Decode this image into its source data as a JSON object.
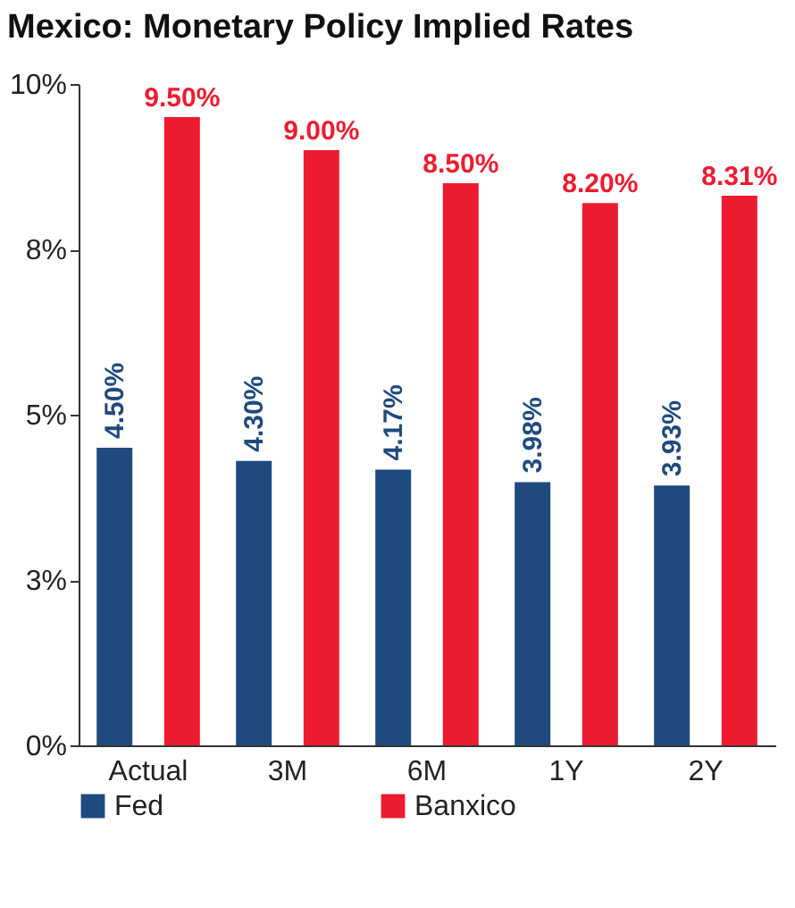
{
  "chart_data": {
    "type": "bar",
    "title": "Mexico: Monetary Policy Implied Rates",
    "categories": [
      "Actual",
      "3M",
      "6M",
      "1Y",
      "2Y"
    ],
    "series": [
      {
        "name": "Fed",
        "color": "#1f4a7e",
        "values": [
          4.5,
          4.3,
          4.17,
          3.98,
          3.93
        ],
        "value_labels": [
          "4.50%",
          "4.30%",
          "4.17%",
          "3.98%",
          "3.93%"
        ]
      },
      {
        "name": "Banxico",
        "color": "#ed1b2f",
        "values": [
          9.5,
          9.0,
          8.5,
          8.2,
          8.31
        ],
        "value_labels": [
          "9.50%",
          "9.00%",
          "8.50%",
          "8.20%",
          "8.31%"
        ]
      }
    ],
    "ylim": [
      0,
      10
    ],
    "yticks": [
      {
        "value": 0,
        "label": "0%"
      },
      {
        "value": 2.5,
        "label": "3%"
      },
      {
        "value": 5,
        "label": "5%"
      },
      {
        "value": 7.5,
        "label": "8%"
      },
      {
        "value": 10,
        "label": "10%"
      }
    ],
    "grid": false,
    "legend": "bottom"
  }
}
